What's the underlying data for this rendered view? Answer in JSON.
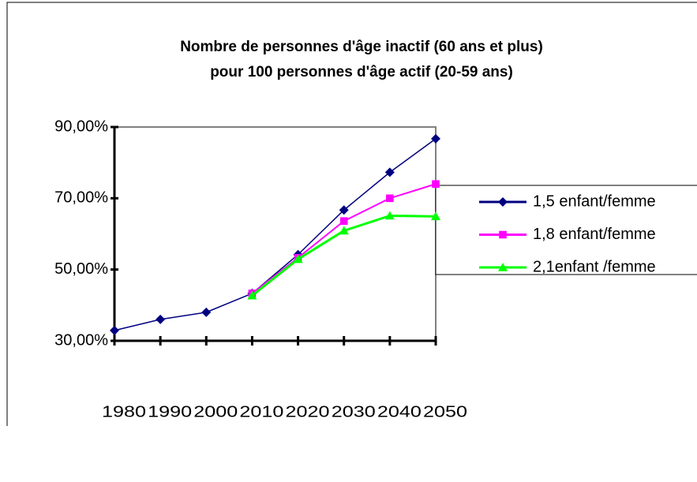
{
  "chart_data": {
    "type": "line",
    "title": [
      "Nombre de personnes d'âge inactif (60 ans et plus)",
      "pour 100 personnes d'âge actif (20-59 ans)"
    ],
    "categories": [
      "1980",
      "1990",
      "2000",
      "2010",
      "2020",
      "2030",
      "2040",
      "2050"
    ],
    "series": [
      {
        "name": "1,5 enfant/femme",
        "color": "#000080",
        "marker": "diamond",
        "values": [
          32.9,
          36.0,
          38.0,
          43.3,
          54.2,
          66.7,
          77.3,
          86.7
        ]
      },
      {
        "name": "1,8 enfant/femme",
        "color": "#ff00ff",
        "marker": "square",
        "values": [
          null,
          null,
          null,
          43.3,
          53.3,
          63.6,
          70.0,
          74.0
        ]
      },
      {
        "name": "2,1enfant /femme",
        "color": "#00ff00",
        "marker": "triangle",
        "values": [
          null,
          null,
          null,
          42.7,
          52.9,
          60.9,
          65.1,
          64.9
        ]
      }
    ],
    "ylim": [
      30,
      90
    ],
    "yticks": [
      {
        "value": 30,
        "label": "30,00%"
      },
      {
        "value": 50,
        "label": "50,00%"
      },
      {
        "value": 70,
        "label": "70,00%"
      },
      {
        "value": 90,
        "label": "90,00%"
      }
    ],
    "legend": "right"
  }
}
